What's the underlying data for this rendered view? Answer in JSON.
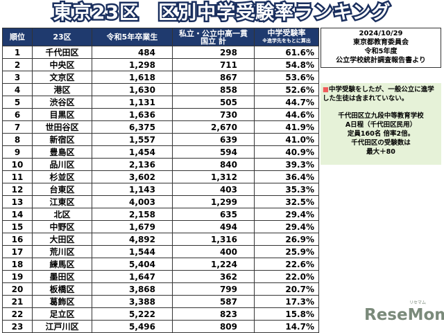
{
  "title": "東京23区　区別中学受験率ランキング",
  "table": {
    "header": [
      "順位",
      "23区",
      "令和5年卒業生",
      "私立・公立中高一貫\n国立 計",
      "中学受験率"
    ],
    "header_note": "※進学先をもとに算出",
    "rows": [
      [
        "1",
        "千代田区",
        "484",
        "298",
        "61.6%"
      ],
      [
        "2",
        "中央区",
        "1,298",
        "711",
        "54.8%"
      ],
      [
        "3",
        "文京区",
        "1,618",
        "867",
        "53.6%"
      ],
      [
        "4",
        "港区",
        "1,630",
        "858",
        "52.6%"
      ],
      [
        "5",
        "渋谷区",
        "1,131",
        "505",
        "44.7%"
      ],
      [
        "6",
        "目黒区",
        "1,636",
        "730",
        "44.6%"
      ],
      [
        "7",
        "世田谷区",
        "6,375",
        "2,670",
        "41.9%"
      ],
      [
        "8",
        "新宿区",
        "1,557",
        "639",
        "41.0%"
      ],
      [
        "9",
        "豊島区",
        "1,454",
        "594",
        "40.9%"
      ],
      [
        "10",
        "品川区",
        "2,136",
        "840",
        "39.3%"
      ],
      [
        "11",
        "杉並区",
        "3,602",
        "1,312",
        "36.4%"
      ],
      [
        "12",
        "台東区",
        "1,143",
        "403",
        "35.3%"
      ],
      [
        "13",
        "江東区",
        "4,003",
        "1,299",
        "32.5%"
      ],
      [
        "14",
        "北区",
        "2,158",
        "635",
        "29.4%"
      ],
      [
        "15",
        "中野区",
        "1,679",
        "494",
        "29.4%"
      ],
      [
        "16",
        "大田区",
        "4,892",
        "1,316",
        "26.9%"
      ],
      [
        "17",
        "荒川区",
        "1,544",
        "400",
        "25.9%"
      ],
      [
        "18",
        "練馬区",
        "5,404",
        "1,224",
        "22.6%"
      ],
      [
        "19",
        "墨田区",
        "1,647",
        "362",
        "22.0%"
      ],
      [
        "20",
        "板橋区",
        "3,868",
        "799",
        "20.7%"
      ],
      [
        "21",
        "葛飾区",
        "3,388",
        "587",
        "17.3%"
      ],
      [
        "22",
        "足立区",
        "5,222",
        "823",
        "15.8%"
      ],
      [
        "23",
        "江戸川区",
        "5,496",
        "809",
        "14.7%"
      ]
    ]
  },
  "source": [
    "2024/10/29",
    "東京都教育委員会",
    "令和5年度",
    "公立学校統計調査報告書より"
  ],
  "note": {
    "marker": "■",
    "text": "中学受験をしたが、一般公立に進学した生徒は含まれていない。",
    "lines": [
      "千代田区立九段中等教育学校",
      "A日程（千代田区民用）",
      "定員160名 倍率2倍。",
      "千代田区の受験数は",
      "最大＋80"
    ]
  },
  "logo": {
    "kana": "リセマム",
    "name": "ReseMom"
  }
}
